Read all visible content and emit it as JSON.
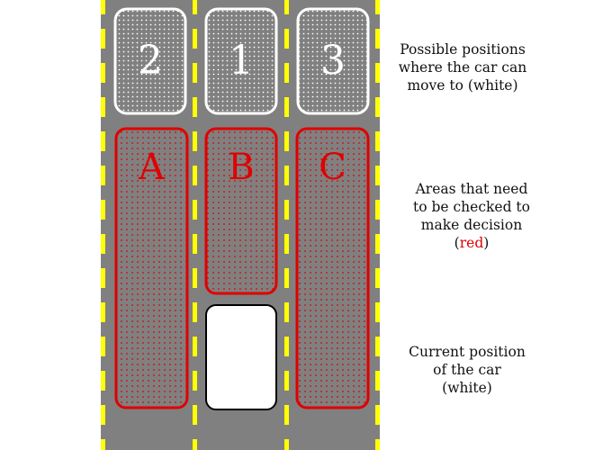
{
  "colors": {
    "road": "#808080",
    "lane_marking": "#ffff00",
    "position_border": "#ffffff",
    "area_border": "#e00000",
    "car_fill": "#ffffff",
    "car_border": "#000000"
  },
  "positions": [
    {
      "label": "2",
      "lane": "left"
    },
    {
      "label": "1",
      "lane": "middle"
    },
    {
      "label": "3",
      "lane": "right"
    }
  ],
  "areas": [
    {
      "label": "A",
      "lane": "left"
    },
    {
      "label": "B",
      "lane": "middle"
    },
    {
      "label": "C",
      "lane": "right"
    }
  ],
  "legend": {
    "positions": {
      "lines": [
        "Possible positions",
        "where the car can",
        "move to (white)"
      ]
    },
    "areas": {
      "lines": [
        "Areas that need",
        "to be checked to",
        "make decision"
      ],
      "color_word": "red"
    },
    "car": {
      "lines": [
        "Current position",
        "of the car",
        "(white)"
      ]
    }
  }
}
